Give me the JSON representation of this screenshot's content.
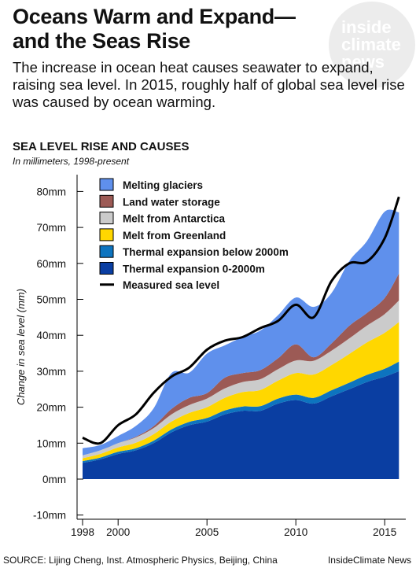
{
  "header": {
    "title_line1": "Oceans Warm and Expand—",
    "title_line2": "and the Seas Rise",
    "subtitle": "The increase in ocean heat causes seawater to expand, raising sea level. In 2015, roughly half of global sea level rise was caused by ocean warming.",
    "logo_lines": [
      "inside",
      "climate",
      "news"
    ]
  },
  "footer": {
    "source": "SOURCE: Lijing Cheng, Inst. Atmospheric Physics, Beijing, China",
    "credit": "InsideClimate News"
  },
  "chart_data": {
    "type": "area",
    "title": "SEA LEVEL RISE AND CAUSES",
    "subtitle": "In millimeters, 1998-present",
    "ylabel": "Change in sea level (mm)",
    "xlabel": "",
    "ylim": [
      -10,
      80
    ],
    "xlim": [
      1997.8,
      2016.0
    ],
    "yticks": [
      -10,
      0,
      10,
      20,
      30,
      40,
      50,
      60,
      70,
      80
    ],
    "ytick_labels": [
      "-10mm",
      "0mm",
      "10mm",
      "20mm",
      "30mm",
      "40mm",
      "50mm",
      "60mm",
      "70mm",
      "80mm"
    ],
    "xticks": [
      1998,
      2000,
      2005,
      2010,
      2015
    ],
    "xtick_labels": [
      "1998",
      "2000",
      "2005",
      "2010",
      "2015"
    ],
    "grid": false,
    "legend_position": "top-left",
    "stacked": true,
    "x": [
      1998,
      1999,
      2000,
      2001,
      2002,
      2003,
      2004,
      2005,
      2006,
      2007,
      2008,
      2009,
      2010,
      2011,
      2012,
      2013,
      2014,
      2015,
      2015.8
    ],
    "series": [
      {
        "name": "Thermal expansion 0-2000m",
        "color": "#0a3ea2",
        "values": [
          4.5,
          5.5,
          7,
          8,
          10,
          13,
          15,
          16,
          18,
          19,
          19,
          21,
          22,
          21,
          23,
          25,
          27,
          28.5,
          30
        ]
      },
      {
        "name": "Thermal expansion below 2000m",
        "color": "#0d74bf",
        "values": [
          0.5,
          0.5,
          0.6,
          0.6,
          0.7,
          0.8,
          0.9,
          1.0,
          1.1,
          1.2,
          1.3,
          1.4,
          1.5,
          1.6,
          1.7,
          1.8,
          2.0,
          2.2,
          2.7
        ]
      },
      {
        "name": "Melt from Greenland",
        "color": "#ffd700",
        "values": [
          0.8,
          1.0,
          1.2,
          1.5,
          1.8,
          2.2,
          2.5,
          3.0,
          3.5,
          4.0,
          4.5,
          5.0,
          6.0,
          6.5,
          7.0,
          8.0,
          9.0,
          10.0,
          11.0
        ]
      },
      {
        "name": "Melt from Antarctica",
        "color": "#cbcbcb",
        "values": [
          0.8,
          1.0,
          1.2,
          1.5,
          1.7,
          2.0,
          2.2,
          2.4,
          2.6,
          2.8,
          3.0,
          3.2,
          3.5,
          3.8,
          4.0,
          4.3,
          4.7,
          5.2,
          6.0
        ]
      },
      {
        "name": "Land water storage",
        "color": "#9c5a55",
        "values": [
          0,
          0,
          0,
          0.2,
          0.5,
          1.5,
          2.0,
          1.5,
          3.0,
          2.5,
          2.5,
          3.0,
          4.5,
          1.0,
          2.0,
          3.5,
          3.5,
          4.5,
          7.5
        ]
      },
      {
        "name": "Melting glaciers",
        "color": "#5f90ec",
        "values": [
          2,
          1.5,
          2,
          3,
          5,
          10,
          7,
          11,
          9,
          10,
          11,
          12,
          13,
          14,
          14,
          18,
          20,
          24,
          17
        ]
      }
    ],
    "measured_sea_level": {
      "name": "Measured sea level",
      "color": "#000000",
      "values": [
        11.5,
        10,
        15,
        18,
        24,
        28.5,
        31,
        36,
        38.5,
        39.5,
        42,
        44,
        48.5,
        45,
        55,
        60,
        60.5,
        67,
        78.5
      ]
    }
  }
}
